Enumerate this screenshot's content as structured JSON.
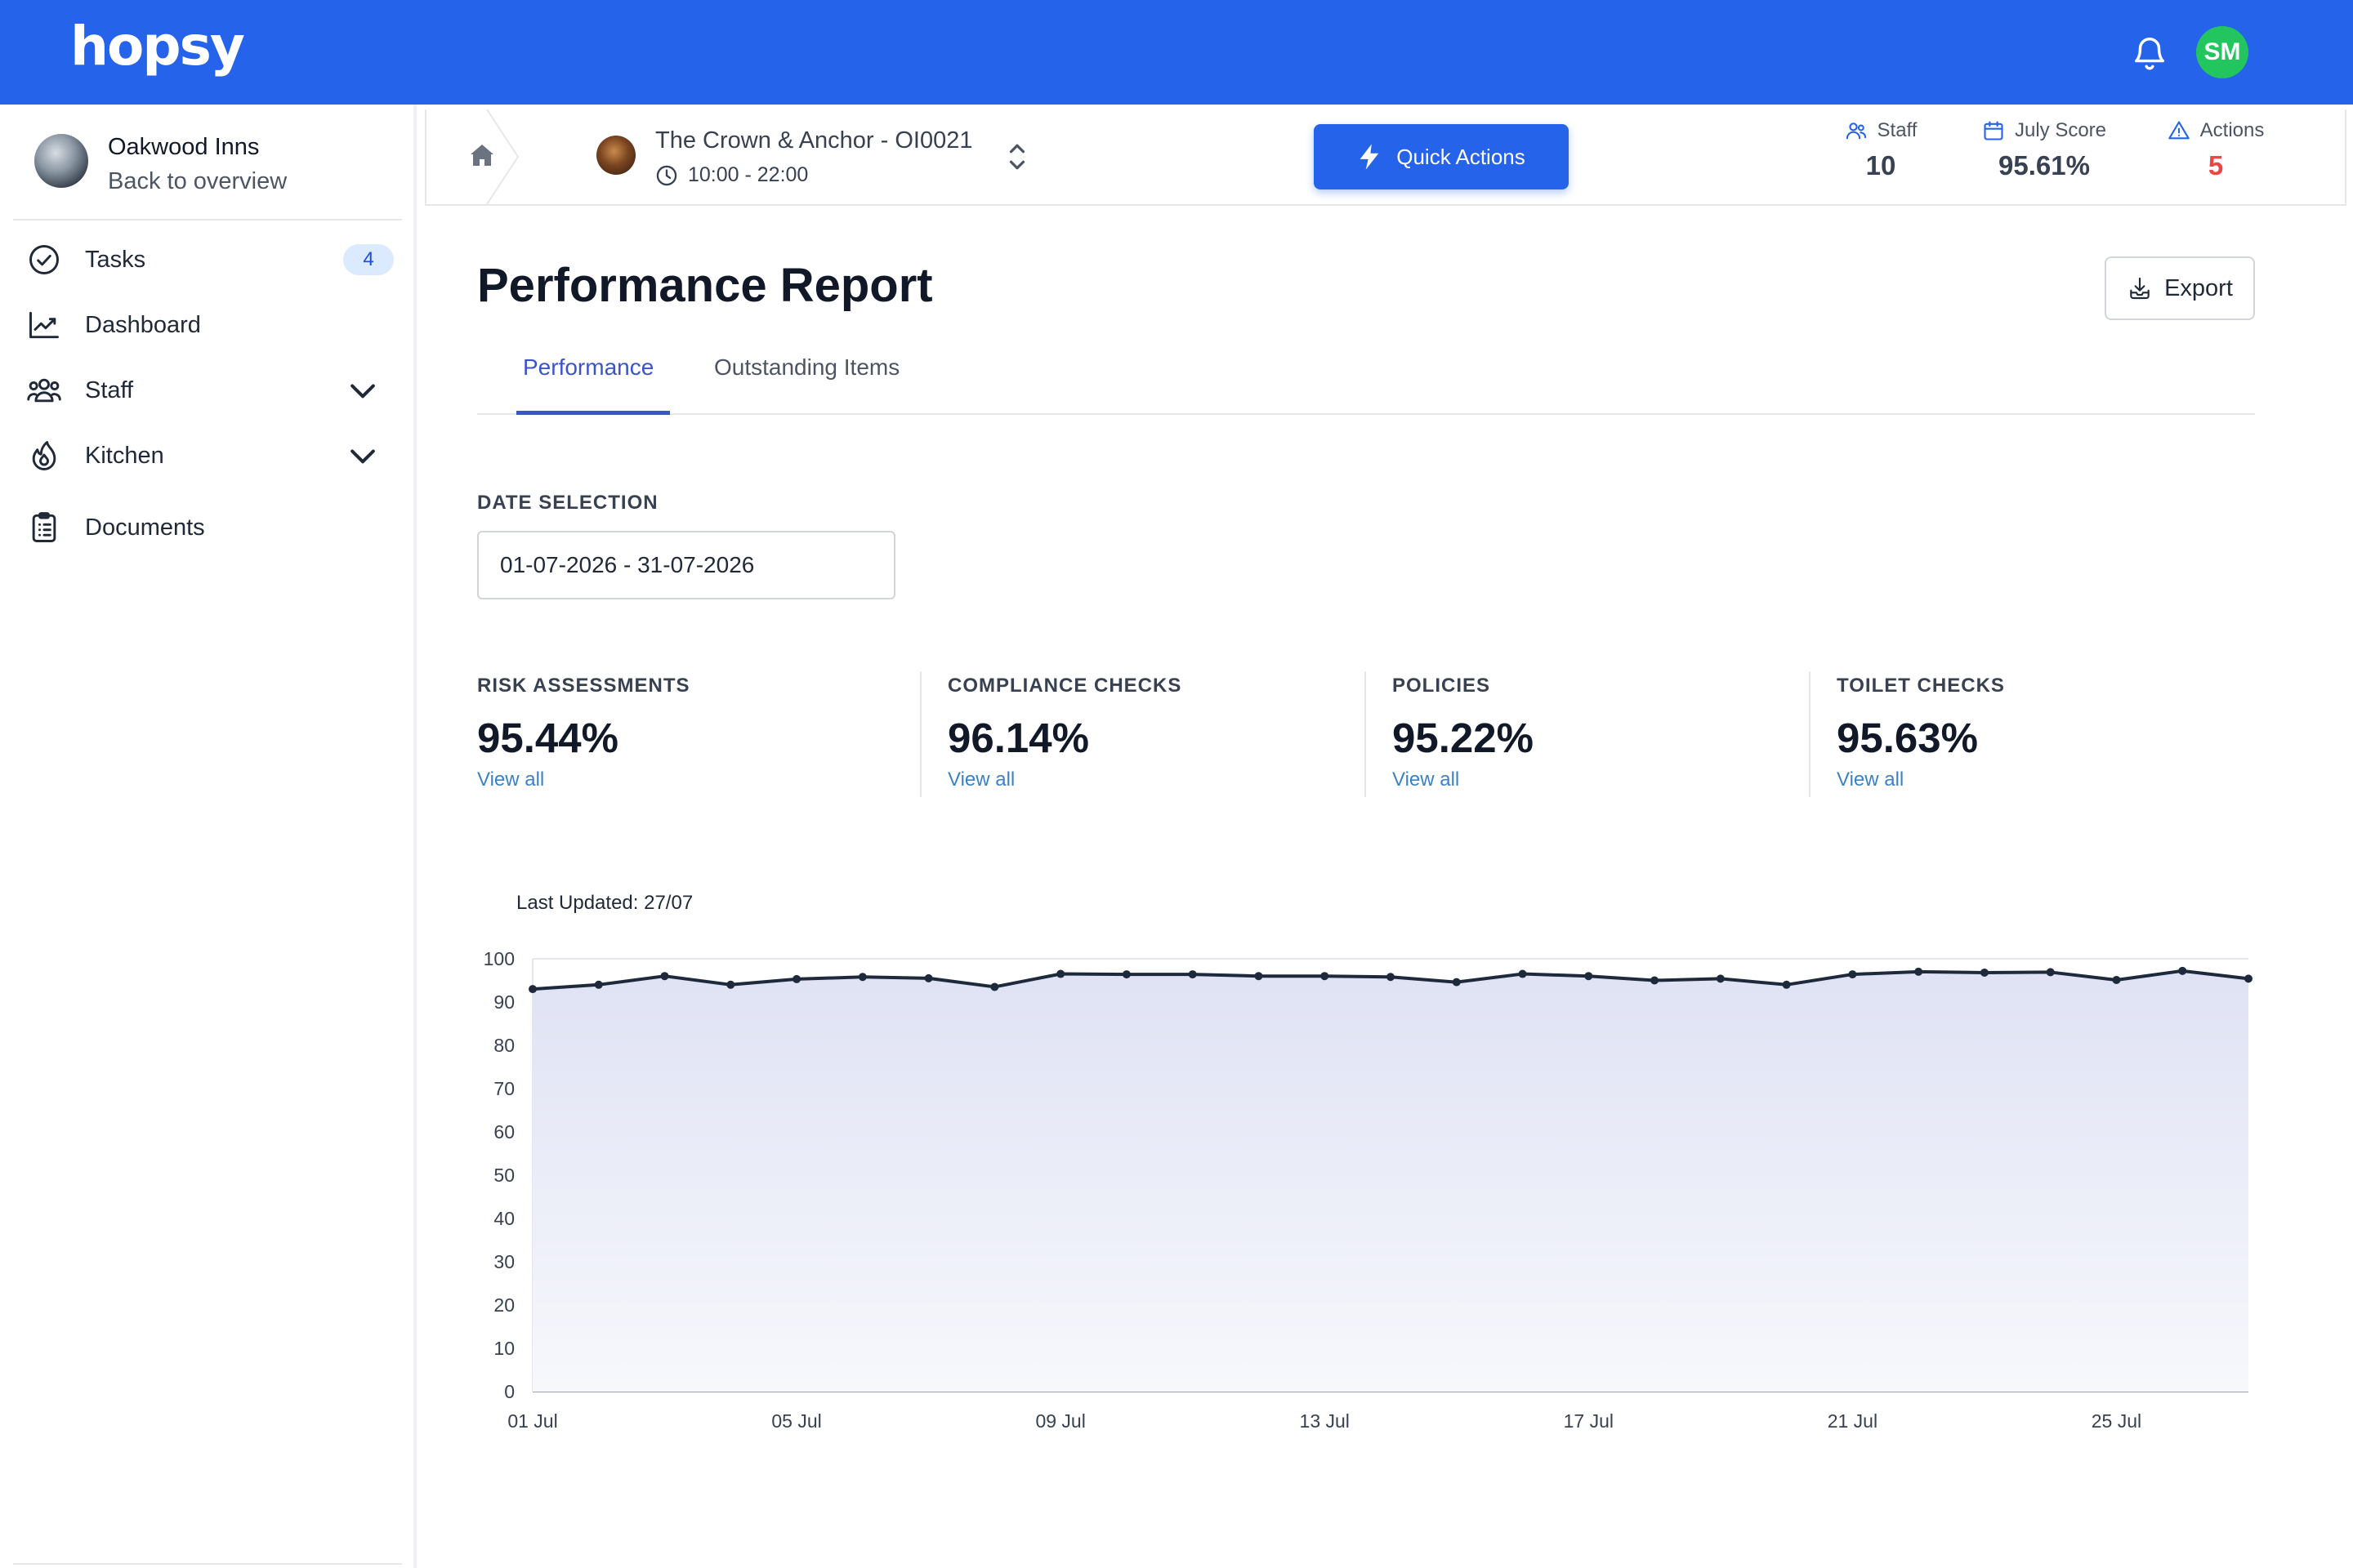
{
  "app": {
    "logo": "hopsy",
    "user_initials": "SM"
  },
  "colors": {
    "brand": "#2563eb",
    "avatar": "#22c55e",
    "accent_tab": "#3b55c7",
    "link": "#3b82c4",
    "actions_value": "#ef4444",
    "chart_line": "#1e2a3b",
    "chart_fill": "#e0e3f5"
  },
  "sidebar": {
    "org_name": "Oakwood Inns",
    "back_label": "Back to overview",
    "items": [
      {
        "label": "Tasks",
        "icon": "check-circle-icon",
        "badge": "4"
      },
      {
        "label": "Dashboard",
        "icon": "chart-line-icon"
      },
      {
        "label": "Staff",
        "icon": "users-icon",
        "expandable": true
      },
      {
        "label": "Kitchen",
        "icon": "flame-icon",
        "expandable": true
      },
      {
        "label": "Documents",
        "icon": "clipboard-icon"
      }
    ]
  },
  "header": {
    "site_name": "The Crown & Anchor - OI0021",
    "site_hours": "10:00 - 22:00",
    "quick_actions": "Quick Actions",
    "stats": [
      {
        "label": "Staff",
        "value": "10",
        "icon": "users-icon"
      },
      {
        "label": "July Score",
        "value": "95.61%",
        "icon": "calendar-icon"
      },
      {
        "label": "Actions",
        "value": "5",
        "icon": "warning-icon"
      }
    ]
  },
  "main": {
    "title": "Performance Report",
    "export_label": "Export",
    "tabs": [
      {
        "label": "Performance",
        "active": true
      },
      {
        "label": "Outstanding Items",
        "active": false
      }
    ],
    "date_selection_label": "DATE SELECTION",
    "date_range": "01-07-2026 - 31-07-2026",
    "metrics": [
      {
        "label": "RISK ASSESSMENTS",
        "value": "95.44%",
        "link": "View all"
      },
      {
        "label": "COMPLIANCE CHECKS",
        "value": "96.14%",
        "link": "View all"
      },
      {
        "label": "POLICIES",
        "value": "95.22%",
        "link": "View all"
      },
      {
        "label": "TOILET CHECKS",
        "value": "95.63%",
        "link": "View all"
      }
    ],
    "last_updated": "Last Updated: 27/07"
  },
  "chart_data": {
    "type": "area",
    "x": [
      "01 Jul",
      "02 Jul",
      "03 Jul",
      "04 Jul",
      "05 Jul",
      "06 Jul",
      "07 Jul",
      "08 Jul",
      "09 Jul",
      "10 Jul",
      "11 Jul",
      "12 Jul",
      "13 Jul",
      "14 Jul",
      "15 Jul",
      "16 Jul",
      "17 Jul",
      "18 Jul",
      "19 Jul",
      "20 Jul",
      "21 Jul",
      "22 Jul",
      "23 Jul",
      "24 Jul",
      "25 Jul",
      "26 Jul",
      "27 Jul"
    ],
    "values": [
      93,
      94,
      96,
      94,
      95.3,
      95.8,
      95.5,
      93.5,
      96.5,
      96.4,
      96.4,
      96,
      96,
      95.8,
      94.6,
      96.5,
      96,
      95,
      95.4,
      94,
      96.4,
      97,
      96.8,
      96.9,
      95.1,
      97.2,
      95.4
    ],
    "xticks": [
      "01 Jul",
      "05 Jul",
      "09 Jul",
      "13 Jul",
      "17 Jul",
      "21 Jul",
      "25 Jul"
    ],
    "yticks": [
      0,
      10,
      20,
      30,
      40,
      50,
      60,
      70,
      80,
      90,
      100
    ],
    "ylim": [
      0,
      100
    ],
    "grid": true,
    "title": "",
    "xlabel": "",
    "ylabel": ""
  }
}
